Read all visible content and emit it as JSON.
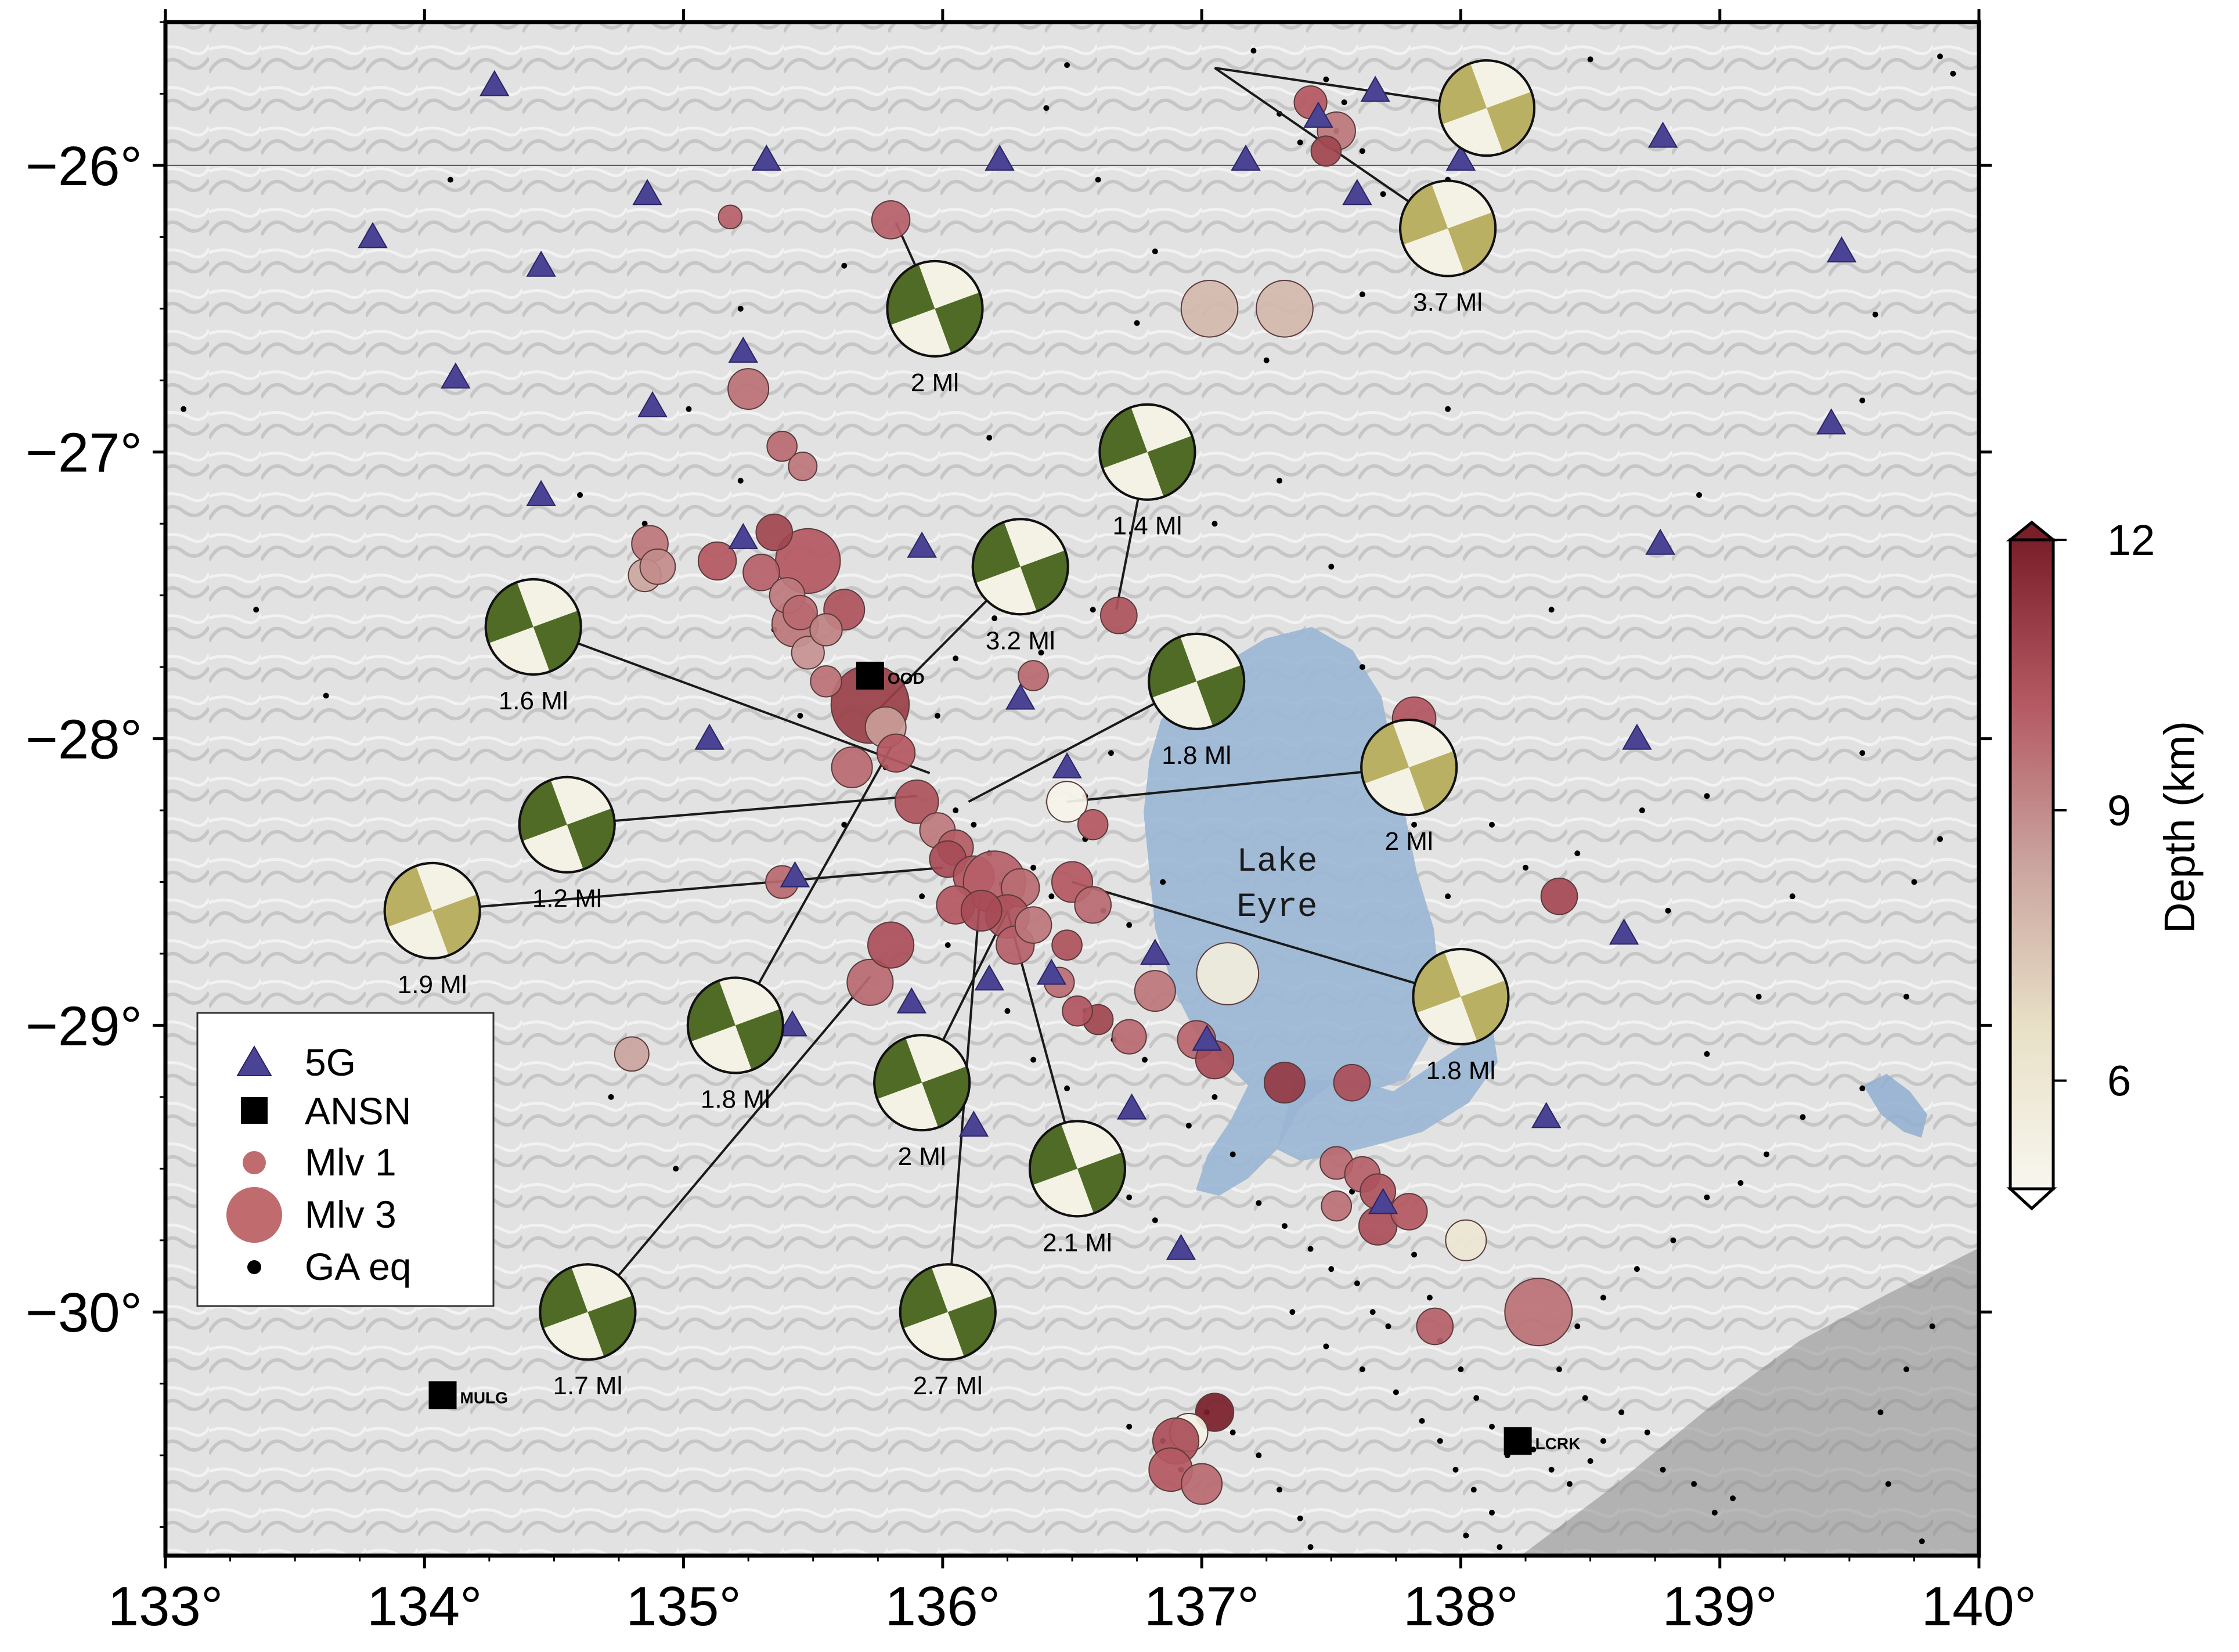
{
  "map": {
    "lon_range": [
      133,
      140
    ],
    "lat_range": [
      -30.85,
      -25.5
    ],
    "x_tick_labels": [
      "133°",
      "134°",
      "135°",
      "136°",
      "137°",
      "138°",
      "139°",
      "140°"
    ],
    "x_tick_values": [
      133,
      134,
      135,
      136,
      137,
      138,
      139,
      140
    ],
    "y_tick_labels": [
      "−26°",
      "−27°",
      "−28°",
      "−29°",
      "−30°"
    ],
    "y_tick_values": [
      -26,
      -27,
      -28,
      -29,
      -30
    ],
    "lake_label_line1": "Lake",
    "lake_label_line2": "Eyre",
    "colors": {
      "terrain": "#dcdcdc",
      "lake": "#9ab6d4",
      "station_5G": "#4b4393",
      "focal_green": "#4f6b25",
      "focal_olive": "#b9b063",
      "focal_white": "#f4f2e4"
    }
  },
  "legend": {
    "items": [
      {
        "label": "5G",
        "symbol": "triangle"
      },
      {
        "label": "ANSN",
        "symbol": "square"
      },
      {
        "label": "Mlv 1",
        "symbol": "small-circle"
      },
      {
        "label": "Mlv 3",
        "symbol": "large-circle"
      },
      {
        "label": "GA eq",
        "symbol": "dot"
      }
    ]
  },
  "colorbar": {
    "title": "Depth (km)",
    "range": [
      4.8,
      12
    ],
    "ticks": [
      6,
      9,
      12
    ],
    "tick_labels": [
      "6",
      "9",
      "12"
    ],
    "colors": [
      "#f7f5ec",
      "#e9e2cc",
      "#c7a09b",
      "#b55a62",
      "#7a1f2a"
    ]
  },
  "ansn_stations": [
    {
      "code": "OOD",
      "lon": 135.72,
      "lat": -27.78
    },
    {
      "code": "MULG",
      "lon": 134.07,
      "lat": -30.29
    },
    {
      "code": "LCRK",
      "lon": 138.22,
      "lat": -30.45
    }
  ],
  "stations_5G": [
    [
      134.27,
      -25.72
    ],
    [
      133.8,
      -26.25
    ],
    [
      134.45,
      -26.35
    ],
    [
      134.86,
      -26.1
    ],
    [
      135.32,
      -25.98
    ],
    [
      135.23,
      -26.65
    ],
    [
      134.12,
      -26.74
    ],
    [
      134.88,
      -26.84
    ],
    [
      134.45,
      -27.15
    ],
    [
      135.23,
      -27.3
    ],
    [
      135.92,
      -27.33
    ],
    [
      136.22,
      -25.98
    ],
    [
      137.17,
      -25.98
    ],
    [
      137.45,
      -25.83
    ],
    [
      137.67,
      -25.74
    ],
    [
      137.6,
      -26.1
    ],
    [
      138.0,
      -25.98
    ],
    [
      138.78,
      -25.9
    ],
    [
      139.47,
      -26.3
    ],
    [
      139.43,
      -26.9
    ],
    [
      138.77,
      -27.32
    ],
    [
      138.68,
      -28.0
    ],
    [
      135.1,
      -28.0
    ],
    [
      136.48,
      -28.1
    ],
    [
      136.3,
      -27.86
    ],
    [
      135.43,
      -28.48
    ],
    [
      135.42,
      -29.0
    ],
    [
      135.88,
      -28.92
    ],
    [
      136.18,
      -28.84
    ],
    [
      136.42,
      -28.82
    ],
    [
      136.82,
      -28.75
    ],
    [
      137.02,
      -29.05
    ],
    [
      136.73,
      -29.29
    ],
    [
      136.12,
      -29.35
    ],
    [
      136.92,
      -29.78
    ],
    [
      137.7,
      -29.62
    ],
    [
      138.63,
      -28.68
    ],
    [
      138.33,
      -29.32
    ]
  ],
  "ga_eq": [
    [
      133.07,
      -26.85
    ],
    [
      133.35,
      -27.55
    ],
    [
      133.62,
      -27.85
    ],
    [
      134.1,
      -26.05
    ],
    [
      134.6,
      -27.15
    ],
    [
      134.85,
      -27.25
    ],
    [
      134.72,
      -29.25
    ],
    [
      134.97,
      -29.5
    ],
    [
      135.22,
      -26.5
    ],
    [
      135.22,
      -27.1
    ],
    [
      135.35,
      -27.62
    ],
    [
      135.45,
      -27.92
    ],
    [
      135.62,
      -28.3
    ],
    [
      135.78,
      -28.1
    ],
    [
      135.98,
      -27.92
    ],
    [
      136.05,
      -28.25
    ],
    [
      136.12,
      -28.3
    ],
    [
      136.18,
      -28.4
    ],
    [
      136.35,
      -28.45
    ],
    [
      136.42,
      -28.55
    ],
    [
      136.55,
      -28.35
    ],
    [
      136.62,
      -28.6
    ],
    [
      136.72,
      -28.65
    ],
    [
      136.85,
      -28.5
    ],
    [
      136.55,
      -28.95
    ],
    [
      136.66,
      -29.05
    ],
    [
      136.78,
      -29.12
    ],
    [
      136.62,
      -29.4
    ],
    [
      136.72,
      -29.6
    ],
    [
      136.82,
      -29.68
    ],
    [
      136.95,
      -29.35
    ],
    [
      137.05,
      -29.25
    ],
    [
      137.12,
      -29.45
    ],
    [
      137.22,
      -29.62
    ],
    [
      137.32,
      -29.7
    ],
    [
      137.42,
      -29.78
    ],
    [
      137.5,
      -29.85
    ],
    [
      137.6,
      -29.9
    ],
    [
      137.66,
      -30.0
    ],
    [
      137.72,
      -30.05
    ],
    [
      137.58,
      -29.58
    ],
    [
      137.82,
      -29.8
    ],
    [
      137.88,
      -29.95
    ],
    [
      137.92,
      -30.1
    ],
    [
      138.0,
      -30.2
    ],
    [
      138.06,
      -30.3
    ],
    [
      138.12,
      -30.4
    ],
    [
      138.18,
      -30.5
    ],
    [
      138.28,
      -30.48
    ],
    [
      138.35,
      -30.55
    ],
    [
      138.42,
      -30.6
    ],
    [
      138.5,
      -30.52
    ],
    [
      138.55,
      -30.45
    ],
    [
      138.48,
      -30.3
    ],
    [
      138.62,
      -30.35
    ],
    [
      138.72,
      -30.42
    ],
    [
      138.78,
      -30.55
    ],
    [
      138.9,
      -30.6
    ],
    [
      138.98,
      -30.7
    ],
    [
      139.05,
      -30.65
    ],
    [
      138.38,
      -30.2
    ],
    [
      138.45,
      -30.05
    ],
    [
      138.55,
      -29.95
    ],
    [
      138.68,
      -29.85
    ],
    [
      138.82,
      -29.75
    ],
    [
      138.95,
      -29.6
    ],
    [
      139.08,
      -29.55
    ],
    [
      139.18,
      -29.45
    ],
    [
      139.32,
      -29.32
    ],
    [
      139.55,
      -29.22
    ],
    [
      139.72,
      -28.9
    ],
    [
      139.75,
      -28.5
    ],
    [
      139.85,
      -28.35
    ],
    [
      139.55,
      -28.05
    ],
    [
      139.28,
      -28.55
    ],
    [
      139.15,
      -28.9
    ],
    [
      138.95,
      -29.1
    ],
    [
      138.8,
      -28.6
    ],
    [
      138.95,
      -28.2
    ],
    [
      138.7,
      -28.25
    ],
    [
      138.45,
      -28.4
    ],
    [
      138.25,
      -28.45
    ],
    [
      138.12,
      -28.3
    ],
    [
      137.95,
      -28.55
    ],
    [
      137.82,
      -28.3
    ],
    [
      137.75,
      -28.05
    ],
    [
      137.62,
      -27.75
    ],
    [
      137.5,
      -27.4
    ],
    [
      137.3,
      -27.1
    ],
    [
      137.05,
      -27.25
    ],
    [
      136.85,
      -26.95
    ],
    [
      136.75,
      -26.55
    ],
    [
      136.82,
      -26.3
    ],
    [
      136.6,
      -26.05
    ],
    [
      136.4,
      -25.8
    ],
    [
      136.48,
      -25.65
    ],
    [
      137.2,
      -25.6
    ],
    [
      137.3,
      -25.82
    ],
    [
      137.38,
      -25.92
    ],
    [
      137.52,
      -25.88
    ],
    [
      137.62,
      -25.95
    ],
    [
      137.55,
      -25.78
    ],
    [
      137.48,
      -25.7
    ],
    [
      137.7,
      -26.1
    ],
    [
      137.95,
      -26.05
    ],
    [
      138.5,
      -25.63
    ],
    [
      139.85,
      -25.62
    ],
    [
      139.9,
      -25.68
    ],
    [
      139.6,
      -26.52
    ],
    [
      139.55,
      -26.82
    ],
    [
      138.92,
      -27.15
    ],
    [
      138.35,
      -27.55
    ],
    [
      137.95,
      -26.85
    ],
    [
      137.62,
      -26.45
    ],
    [
      137.25,
      -26.68
    ],
    [
      136.18,
      -26.95
    ],
    [
      135.62,
      -26.35
    ],
    [
      135.02,
      -26.85
    ],
    [
      135.92,
      -28.55
    ],
    [
      136.02,
      -28.72
    ],
    [
      136.25,
      -28.95
    ],
    [
      136.35,
      -29.12
    ],
    [
      136.48,
      -29.22
    ],
    [
      137.35,
      -30.0
    ],
    [
      137.48,
      -30.12
    ],
    [
      137.62,
      -30.2
    ],
    [
      137.75,
      -30.28
    ],
    [
      137.85,
      -30.38
    ],
    [
      137.92,
      -30.45
    ],
    [
      137.98,
      -30.55
    ],
    [
      138.05,
      -30.62
    ],
    [
      138.12,
      -30.7
    ],
    [
      136.72,
      -30.4
    ],
    [
      136.85,
      -30.45
    ],
    [
      136.92,
      -30.55
    ],
    [
      137.02,
      -30.35
    ],
    [
      137.12,
      -30.42
    ],
    [
      137.22,
      -30.5
    ],
    [
      137.3,
      -30.62
    ],
    [
      137.38,
      -30.72
    ],
    [
      137.42,
      -30.82
    ],
    [
      138.02,
      -30.78
    ],
    [
      138.15,
      -30.82
    ],
    [
      139.82,
      -30.05
    ],
    [
      139.72,
      -30.2
    ],
    [
      139.62,
      -30.35
    ],
    [
      139.65,
      -30.6
    ],
    [
      139.78,
      -30.8
    ],
    [
      136.55,
      -28.2
    ],
    [
      136.65,
      -28.05
    ],
    [
      136.58,
      -27.55
    ],
    [
      136.38,
      -27.7
    ],
    [
      136.2,
      -27.58
    ],
    [
      136.05,
      -27.72
    ]
  ],
  "local_eq": [
    [
      135.8,
      -26.19,
      0.45,
      10
    ],
    [
      135.25,
      -26.78,
      0.5,
      9.6
    ],
    [
      135.48,
      -27.38,
      0.95,
      10.2
    ],
    [
      135.43,
      -27.6,
      0.6,
      9.5
    ],
    [
      135.62,
      -27.55,
      0.5,
      10.4
    ],
    [
      135.35,
      -27.28,
      0.42,
      10.8
    ],
    [
      135.72,
      -27.88,
      1.2,
      11.0
    ],
    [
      135.78,
      -27.96,
      0.5,
      8.6
    ],
    [
      135.65,
      -28.1,
      0.5,
      9.8
    ],
    [
      135.82,
      -28.05,
      0.45,
      10.2
    ],
    [
      135.9,
      -28.22,
      0.55,
      10.4
    ],
    [
      135.98,
      -28.32,
      0.4,
      9.4
    ],
    [
      136.05,
      -28.38,
      0.4,
      10.1
    ],
    [
      136.02,
      -28.42,
      0.42,
      10.6
    ],
    [
      136.12,
      -28.48,
      0.5,
      10.3
    ],
    [
      136.2,
      -28.5,
      0.9,
      10.0
    ],
    [
      136.3,
      -28.52,
      0.45,
      9.7
    ],
    [
      136.25,
      -28.62,
      0.55,
      10.4
    ],
    [
      136.28,
      -28.72,
      0.45,
      10.0
    ],
    [
      136.35,
      -28.65,
      0.42,
      9.5
    ],
    [
      136.05,
      -28.58,
      0.45,
      10.2
    ],
    [
      136.15,
      -28.6,
      0.5,
      10.6
    ],
    [
      135.72,
      -28.85,
      0.6,
      9.8
    ],
    [
      135.8,
      -28.72,
      0.6,
      10.5
    ],
    [
      134.8,
      -29.1,
      0.38,
      8.4
    ],
    [
      134.87,
      -27.32,
      0.42,
      9.5
    ],
    [
      134.85,
      -27.43,
      0.35,
      8.3
    ],
    [
      134.9,
      -27.4,
      0.4,
      9.0
    ],
    [
      135.13,
      -27.38,
      0.45,
      10.2
    ],
    [
      135.3,
      -27.42,
      0.42,
      10.0
    ],
    [
      135.4,
      -27.5,
      0.4,
      9.4
    ],
    [
      135.48,
      -27.7,
      0.35,
      8.8
    ],
    [
      135.55,
      -27.8,
      0.32,
      9.6
    ],
    [
      135.45,
      -27.56,
      0.38,
      9.8
    ],
    [
      135.55,
      -27.62,
      0.34,
      9.2
    ],
    [
      135.38,
      -26.98,
      0.3,
      9.8
    ],
    [
      135.46,
      -27.05,
      0.27,
      9.5
    ],
    [
      135.18,
      -26.18,
      0.18,
      10.0
    ],
    [
      136.68,
      -27.57,
      0.42,
      10.4
    ],
    [
      136.5,
      -28.5,
      0.5,
      10.2
    ],
    [
      136.58,
      -28.58,
      0.42,
      9.8
    ],
    [
      136.48,
      -28.22,
      0.5,
      5.0
    ],
    [
      136.82,
      -28.88,
      0.5,
      9.5
    ],
    [
      136.72,
      -29.04,
      0.38,
      9.8
    ],
    [
      136.6,
      -28.98,
      0.3,
      10.8
    ],
    [
      136.52,
      -28.95,
      0.3,
      10.3
    ],
    [
      136.45,
      -28.85,
      0.3,
      9.7
    ],
    [
      136.48,
      -28.72,
      0.3,
      10.4
    ],
    [
      136.98,
      -29.05,
      0.45,
      9.9
    ],
    [
      137.05,
      -29.12,
      0.45,
      10.6
    ],
    [
      137.1,
      -28.82,
      0.9,
      5.6
    ],
    [
      137.32,
      -29.2,
      0.5,
      11.2
    ],
    [
      137.58,
      -29.2,
      0.42,
      10.5
    ],
    [
      137.82,
      -27.93,
      0.55,
      10.3
    ],
    [
      137.52,
      -29.48,
      0.35,
      9.8
    ],
    [
      137.62,
      -29.52,
      0.4,
      10.0
    ],
    [
      137.68,
      -29.58,
      0.4,
      10.4
    ],
    [
      137.68,
      -29.7,
      0.45,
      10.5
    ],
    [
      137.8,
      -29.65,
      0.42,
      10.2
    ],
    [
      137.52,
      -29.63,
      0.3,
      9.6
    ],
    [
      138.02,
      -29.75,
      0.5,
      6.0
    ],
    [
      137.9,
      -30.05,
      0.42,
      10.0
    ],
    [
      138.3,
      -30.0,
      1.0,
      9.6
    ],
    [
      138.38,
      -28.55,
      0.42,
      10.7
    ],
    [
      137.03,
      -26.5,
      0.8,
      7.8
    ],
    [
      137.32,
      -26.5,
      0.8,
      7.8
    ],
    [
      137.42,
      -25.78,
      0.35,
      10.2
    ],
    [
      137.52,
      -25.88,
      0.45,
      9.5
    ],
    [
      137.48,
      -25.95,
      0.3,
      10.8
    ],
    [
      137.05,
      -30.35,
      0.45,
      12.0
    ],
    [
      136.95,
      -30.42,
      0.45,
      5.2
    ],
    [
      136.9,
      -30.45,
      0.6,
      10.5
    ],
    [
      136.88,
      -30.55,
      0.55,
      10.2
    ],
    [
      137.0,
      -30.6,
      0.5,
      9.8
    ],
    [
      135.38,
      -28.5,
      0.35,
      9.8
    ],
    [
      136.35,
      -27.78,
      0.3,
      9.8
    ],
    [
      136.58,
      -28.3,
      0.3,
      10.2
    ]
  ],
  "focal_mechanisms": [
    {
      "cx": 134.42,
      "cy": -27.61,
      "ex": 135.95,
      "ey": -28.12,
      "label": "1.6 Ml",
      "color": "green"
    },
    {
      "cx": 134.55,
      "cy": -28.3,
      "ex": 135.9,
      "ey": -28.2,
      "label": "1.2 Ml",
      "color": "green"
    },
    {
      "cx": 134.03,
      "cy": -28.6,
      "ex": 136.0,
      "ey": -28.45,
      "label": "1.9 Ml",
      "color": "olive"
    },
    {
      "cx": 135.2,
      "cy": -29.0,
      "ex": 135.82,
      "ey": -28.0,
      "label": "1.8 Ml",
      "color": "green"
    },
    {
      "cx": 134.63,
      "cy": -30.0,
      "ex": 135.72,
      "ey": -28.83,
      "label": "1.7 Ml",
      "color": "green"
    },
    {
      "cx": 135.97,
      "cy": -26.5,
      "ex": 135.82,
      "ey": -26.2,
      "label": "2 Ml",
      "color": "green"
    },
    {
      "cx": 136.3,
      "cy": -27.4,
      "ex": 135.75,
      "ey": -27.9,
      "label": "3.2 Ml",
      "color": "green"
    },
    {
      "cx": 136.79,
      "cy": -27.0,
      "ex": 136.67,
      "ey": -27.55,
      "label": "1.4 Ml",
      "color": "green"
    },
    {
      "cx": 136.98,
      "cy": -27.8,
      "ex": 136.1,
      "ey": -28.22,
      "label": "1.8 Ml",
      "color": "green"
    },
    {
      "cx": 135.92,
      "cy": -29.2,
      "ex": 136.25,
      "ey": -28.6,
      "label": "2 Ml",
      "color": "green"
    },
    {
      "cx": 136.02,
      "cy": -30.0,
      "ex": 136.15,
      "ey": -28.48,
      "label": "2.7 Ml",
      "color": "green"
    },
    {
      "cx": 136.52,
      "cy": -29.5,
      "ex": 136.22,
      "ey": -28.5,
      "label": "2.1 Ml",
      "color": "green"
    },
    {
      "cx": 137.8,
      "cy": -28.1,
      "ex": 136.48,
      "ey": -28.22,
      "label": "2 Ml",
      "color": "olive"
    },
    {
      "cx": 138.0,
      "cy": -28.9,
      "ex": 136.5,
      "ey": -28.5,
      "label": "1.8 Ml",
      "color": "olive"
    },
    {
      "cx": 138.1,
      "cy": -25.8,
      "ex": 137.05,
      "ey": -25.66,
      "label": "",
      "color": "olive"
    },
    {
      "cx": 137.95,
      "cy": -26.22,
      "ex": 137.05,
      "ey": -25.66,
      "label": "3.7 Ml",
      "color": "olive"
    }
  ]
}
